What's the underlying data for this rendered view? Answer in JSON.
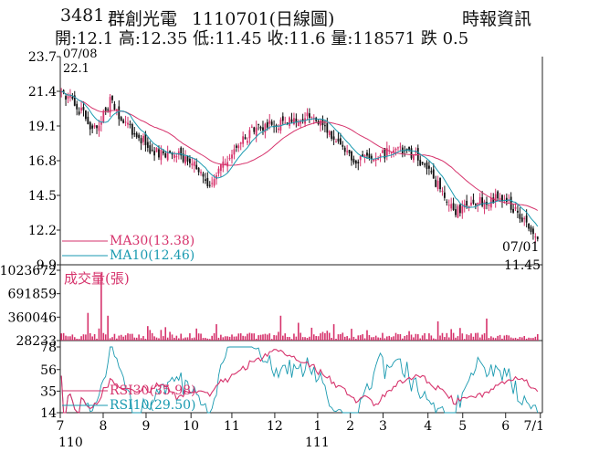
{
  "header": {
    "code": "3481",
    "name": "群創光電",
    "date": "1110701(日線圖)",
    "source": "時報資訊",
    "quote": "開:12.1 高:12.35 低:11.45 收:11.6 量:118571 跌 0.5"
  },
  "chart_data": [
    {
      "type": "candlestick",
      "panel": "price",
      "y_ticks": [
        "23.7",
        "21.4",
        "19.1",
        "16.8",
        "14.5",
        "12.2",
        "9.9"
      ],
      "ylim": [
        9.9,
        23.7
      ],
      "first_label": {
        "date": "07/08",
        "value": "22.1"
      },
      "last_label": {
        "date": "07/01",
        "value": "11.45"
      },
      "legend": [
        {
          "name": "MA30(13.38)",
          "color": "#d6336c"
        },
        {
          "name": "MA10(12.46)",
          "color": "#1a9ab0"
        }
      ],
      "candle_up_color": "#d6336c",
      "candle_down_color": "#111111",
      "close_keypoints": [
        {
          "d": 0,
          "v": 21.2
        },
        {
          "d": 6,
          "v": 20.6
        },
        {
          "d": 12,
          "v": 19.4
        },
        {
          "d": 16,
          "v": 18.7
        },
        {
          "d": 22,
          "v": 20.8
        },
        {
          "d": 26,
          "v": 19.6
        },
        {
          "d": 34,
          "v": 18.6
        },
        {
          "d": 42,
          "v": 17.3
        },
        {
          "d": 52,
          "v": 17.4
        },
        {
          "d": 60,
          "v": 16.5
        },
        {
          "d": 66,
          "v": 15.2
        },
        {
          "d": 72,
          "v": 16.3
        },
        {
          "d": 80,
          "v": 17.9
        },
        {
          "d": 88,
          "v": 19.0
        },
        {
          "d": 96,
          "v": 19.2
        },
        {
          "d": 104,
          "v": 19.5
        },
        {
          "d": 112,
          "v": 19.7
        },
        {
          "d": 118,
          "v": 19.3
        },
        {
          "d": 126,
          "v": 17.8
        },
        {
          "d": 132,
          "v": 16.9
        },
        {
          "d": 140,
          "v": 17.0
        },
        {
          "d": 148,
          "v": 17.4
        },
        {
          "d": 154,
          "v": 17.5
        },
        {
          "d": 160,
          "v": 17.1
        },
        {
          "d": 168,
          "v": 15.6
        },
        {
          "d": 174,
          "v": 14.3
        },
        {
          "d": 178,
          "v": 13.5
        },
        {
          "d": 184,
          "v": 13.9
        },
        {
          "d": 190,
          "v": 14.1
        },
        {
          "d": 196,
          "v": 14.3
        },
        {
          "d": 202,
          "v": 14.0
        },
        {
          "d": 210,
          "v": 12.7
        },
        {
          "d": 215,
          "v": 11.6
        }
      ]
    },
    {
      "type": "bar",
      "panel": "volume",
      "title": "成交量(張)",
      "y_ticks": [
        "1023672",
        "691859",
        "360046",
        "28233"
      ],
      "ylim": [
        28233,
        1023672
      ],
      "color": "#d6336c",
      "peaks": [
        {
          "d": 18,
          "v": 980000
        },
        {
          "d": 12,
          "v": 420000
        },
        {
          "d": 21,
          "v": 380000
        },
        {
          "d": 70,
          "v": 260000
        },
        {
          "d": 99,
          "v": 380000
        },
        {
          "d": 107,
          "v": 280000
        },
        {
          "d": 123,
          "v": 260000
        },
        {
          "d": 170,
          "v": 300000
        },
        {
          "d": 192,
          "v": 340000
        },
        {
          "d": 215,
          "v": 118571
        }
      ]
    },
    {
      "type": "line",
      "panel": "rsi",
      "y_ticks": [
        "78",
        "56",
        "35",
        "14"
      ],
      "ylim": [
        14,
        78
      ],
      "series": [
        {
          "name": "RSI30(35.98)",
          "color": "#d6336c"
        },
        {
          "name": "RSI10(29.50)",
          "color": "#1a9ab0"
        }
      ],
      "x_month_labels": [
        "7",
        "8",
        "9",
        "10",
        "11",
        "12",
        "1",
        "2",
        "3",
        "4",
        "5",
        "6",
        "7/1"
      ],
      "x_month_positions": [
        0,
        21,
        42,
        64,
        84,
        105,
        126,
        142,
        158,
        180,
        197,
        218,
        235
      ],
      "x_year_labels": [
        "110",
        "111"
      ]
    }
  ]
}
